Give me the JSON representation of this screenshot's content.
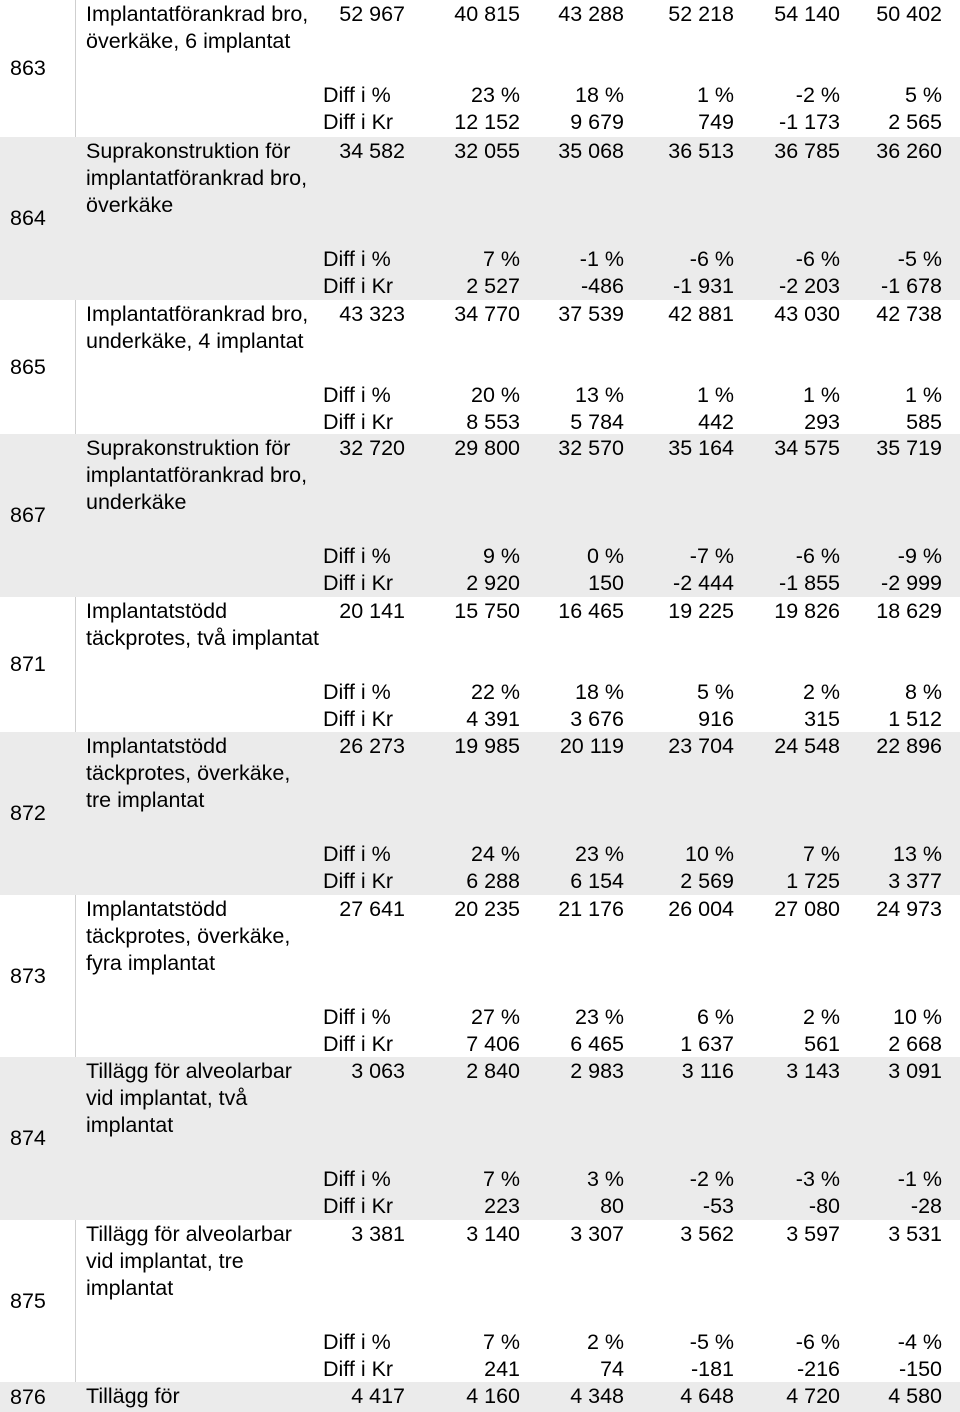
{
  "rows": [
    {
      "code": "863",
      "label": "Implantatförankrad bro, överkäke, 6 implantat",
      "lines": 3,
      "values": [
        "52 967",
        "40 815",
        "43 288",
        "52 218",
        "54 140",
        "50 402"
      ],
      "diff_pct_label": "Diff i %",
      "diff_pct": [
        "23 %",
        "18 %",
        "1 %",
        "-2 %",
        "5 %"
      ],
      "diff_kr_label": "Diff i Kr",
      "diff_kr": [
        "12 152",
        "9 679",
        "749",
        "-1 173",
        "2 565"
      ]
    },
    {
      "code": "864",
      "label": "Suprakonstruktion för implantatförankrad bro, överkäke",
      "lines": 4,
      "values": [
        "34 582",
        "32 055",
        "35 068",
        "36 513",
        "36 785",
        "36 260"
      ],
      "diff_pct_label": "Diff i %",
      "diff_pct": [
        "7 %",
        "-1 %",
        "-6 %",
        "-6 %",
        "-5 %"
      ],
      "diff_kr_label": "Diff i Kr",
      "diff_kr": [
        "2 527",
        "-486",
        "-1 931",
        "-2 203",
        "-1 678"
      ]
    },
    {
      "code": "865",
      "label": "Implantatförankrad bro, underkäke, 4 implantat",
      "lines": 3,
      "values": [
        "43 323",
        "34 770",
        "37 539",
        "42 881",
        "43 030",
        "42 738"
      ],
      "diff_pct_label": "Diff i %",
      "diff_pct": [
        "20 %",
        "13 %",
        "1 %",
        "1 %",
        "1 %"
      ],
      "diff_kr_label": "Diff i Kr",
      "diff_kr": [
        "8 553",
        "5 784",
        "442",
        "293",
        "585"
      ]
    },
    {
      "code": "867",
      "label": "Suprakonstruktion för implantatförankrad bro, underkäke",
      "lines": 4,
      "values": [
        "32 720",
        "29 800",
        "32 570",
        "35 164",
        "34 575",
        "35 719"
      ],
      "diff_pct_label": "Diff i %",
      "diff_pct": [
        "9 %",
        "0 %",
        "-7 %",
        "-6 %",
        "-9 %"
      ],
      "diff_kr_label": "Diff i Kr",
      "diff_kr": [
        "2 920",
        "150",
        "-2 444",
        "-1 855",
        "-2 999"
      ]
    },
    {
      "code": "871",
      "label": "Implantatstödd täckprotes, två implantat",
      "lines": 3,
      "values": [
        "20 141",
        "15 750",
        "16 465",
        "19 225",
        "19 826",
        "18 629"
      ],
      "diff_pct_label": "Diff i %",
      "diff_pct": [
        "22 %",
        "18 %",
        "5 %",
        "2 %",
        "8 %"
      ],
      "diff_kr_label": "Diff i Kr",
      "diff_kr": [
        "4 391",
        "3 676",
        "916",
        "315",
        "1 512"
      ]
    },
    {
      "code": "872",
      "label": "Implantatstödd täckprotes, överkäke, tre implantat",
      "lines": 4,
      "values": [
        "26 273",
        "19 985",
        "20 119",
        "23 704",
        "24 548",
        "22 896"
      ],
      "diff_pct_label": "Diff i %",
      "diff_pct": [
        "24 %",
        "23 %",
        "10 %",
        "7 %",
        "13 %"
      ],
      "diff_kr_label": "Diff i Kr",
      "diff_kr": [
        "6 288",
        "6 154",
        "2 569",
        "1 725",
        "3 377"
      ]
    },
    {
      "code": "873",
      "label": "Implantatstödd täckprotes, överkäke, fyra implantat",
      "lines": 4,
      "values": [
        "27 641",
        "20 235",
        "21 176",
        "26 004",
        "27 080",
        "24 973"
      ],
      "diff_pct_label": "Diff i %",
      "diff_pct": [
        "27 %",
        "23 %",
        "6 %",
        "2 %",
        "10 %"
      ],
      "diff_kr_label": "Diff i Kr",
      "diff_kr": [
        "7 406",
        "6 465",
        "1 637",
        "561",
        "2 668"
      ]
    },
    {
      "code": "874",
      "label": "Tillägg för alveolarbar vid implantat, två implantat",
      "lines": 4,
      "values": [
        "3 063",
        "2 840",
        "2 983",
        "3 116",
        "3 143",
        "3 091"
      ],
      "diff_pct_label": "Diff i %",
      "diff_pct": [
        "7 %",
        "3 %",
        "-2 %",
        "-3 %",
        "-1 %"
      ],
      "diff_kr_label": "Diff i Kr",
      "diff_kr": [
        "223",
        "80",
        "-53",
        "-80",
        "-28"
      ]
    },
    {
      "code": "875",
      "label": "Tillägg för alveolarbar vid implantat, tre implantat",
      "lines": 4,
      "values": [
        "3 381",
        "3 140",
        "3 307",
        "3 562",
        "3 597",
        "3 531"
      ],
      "diff_pct_label": "Diff i %",
      "diff_pct": [
        "7 %",
        "2 %",
        "-5 %",
        "-6 %",
        "-4 %"
      ],
      "diff_kr_label": "Diff i Kr",
      "diff_kr": [
        "241",
        "74",
        "-181",
        "-216",
        "-150"
      ]
    },
    {
      "code": "876",
      "label": "Tillägg för",
      "lines": 1,
      "values": [
        "4 417",
        "4 160",
        "4 348",
        "4 648",
        "4 720",
        "4 580"
      ],
      "diff_pct_label": "",
      "diff_pct": [],
      "diff_kr_label": "",
      "diff_kr": []
    }
  ]
}
